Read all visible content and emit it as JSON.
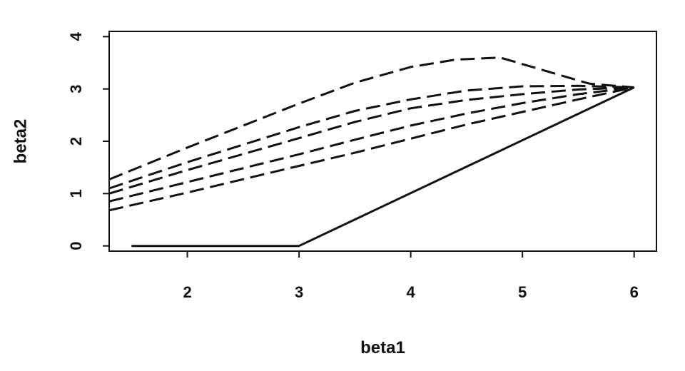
{
  "chart_data": {
    "type": "line",
    "title": "",
    "xlabel": "beta1",
    "ylabel": "beta2",
    "xlim": [
      1.3,
      6.2
    ],
    "ylim": [
      -0.1,
      4.1
    ],
    "xticks": [
      2,
      3,
      4,
      5,
      6
    ],
    "yticks": [
      0,
      1,
      2,
      3,
      4
    ],
    "grid": false,
    "legend": "none",
    "series": [
      {
        "style": "solid",
        "color": "#111111",
        "x": [
          1.5,
          3.0,
          6.0
        ],
        "y": [
          0.0,
          0.0,
          3.03
        ]
      },
      {
        "style": "dashed",
        "color": "#111111",
        "x": [
          1.3,
          2.0,
          3.0,
          3.5,
          4.0,
          4.4,
          4.8,
          5.2,
          5.6,
          6.0
        ],
        "y": [
          1.27,
          1.88,
          2.72,
          3.12,
          3.42,
          3.56,
          3.6,
          3.35,
          3.1,
          3.03
        ]
      },
      {
        "style": "dashed",
        "color": "#111111",
        "x": [
          1.3,
          2.0,
          3.0,
          3.5,
          4.0,
          4.5,
          5.0,
          5.5,
          6.0
        ],
        "y": [
          1.1,
          1.6,
          2.27,
          2.58,
          2.8,
          2.97,
          3.05,
          3.06,
          3.03
        ]
      },
      {
        "style": "dashed",
        "color": "#111111",
        "x": [
          1.3,
          2.0,
          3.0,
          3.5,
          4.0,
          4.5,
          5.0,
          5.5,
          6.0
        ],
        "y": [
          1.0,
          1.45,
          2.06,
          2.37,
          2.63,
          2.79,
          2.9,
          2.99,
          3.03
        ]
      },
      {
        "style": "dashed",
        "color": "#111111",
        "x": [
          1.3,
          2.0,
          3.0,
          3.5,
          4.0,
          4.5,
          5.0,
          5.5,
          6.0
        ],
        "y": [
          0.85,
          1.22,
          1.75,
          2.03,
          2.3,
          2.53,
          2.73,
          2.9,
          3.03
        ]
      },
      {
        "style": "dashed",
        "color": "#111111",
        "x": [
          1.3,
          2.0,
          3.0,
          3.5,
          4.0,
          4.5,
          5.0,
          5.5,
          6.0
        ],
        "y": [
          0.68,
          1.02,
          1.53,
          1.78,
          2.05,
          2.32,
          2.56,
          2.8,
          3.03
        ]
      }
    ]
  }
}
